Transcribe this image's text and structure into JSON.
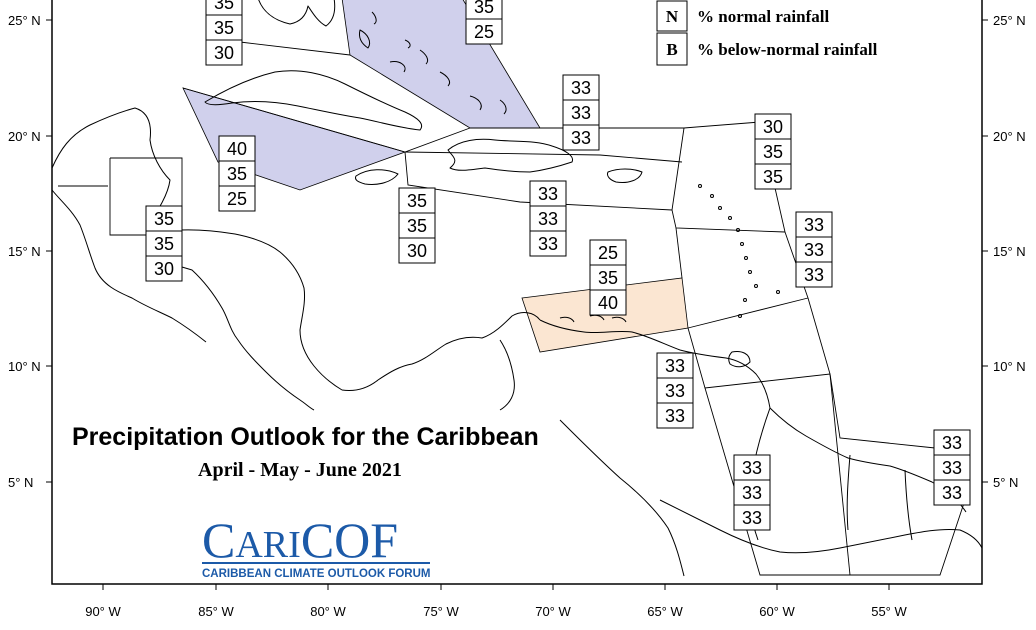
{
  "title": "Precipitation Outlook for the Caribbean",
  "subtitle": "April - May - June 2021",
  "legend": [
    {
      "key": "N",
      "label": "% normal rainfall"
    },
    {
      "key": "B",
      "label": "% below-normal rainfall"
    }
  ],
  "logo": {
    "text_cari": "CARI",
    "text_cof": "COF",
    "tagline": "CARIBBEAN CLIMATE OUTLOOK FORUM"
  },
  "lat_labels": [
    "25° N",
    "20° N",
    "15° N",
    "10° N",
    "5° N"
  ],
  "lon_labels": [
    "90° W",
    "85° W",
    "80° W",
    "75° W",
    "70° W",
    "65° W",
    "60° W",
    "55° W"
  ],
  "colors": {
    "above_normal_fill": "#d0d0ec",
    "below_normal_fill": "#fbe6d2",
    "land_line": "#000000"
  },
  "forecasts": [
    {
      "id": "bahamas-north-west",
      "values": [
        "35",
        "35",
        "30"
      ]
    },
    {
      "id": "bahamas-east",
      "values": [
        "35",
        "25"
      ]
    },
    {
      "id": "cayman",
      "values": [
        "40",
        "35",
        "25"
      ]
    },
    {
      "id": "belize",
      "values": [
        "35",
        "35",
        "30"
      ]
    },
    {
      "id": "jamaica",
      "values": [
        "35",
        "35",
        "30"
      ]
    },
    {
      "id": "hispaniola-north",
      "values": [
        "33",
        "33",
        "33"
      ]
    },
    {
      "id": "hispaniola-south",
      "values": [
        "33",
        "33",
        "33"
      ]
    },
    {
      "id": "leeward-north",
      "values": [
        "30",
        "35",
        "35"
      ]
    },
    {
      "id": "windward",
      "values": [
        "33",
        "33",
        "33"
      ]
    },
    {
      "id": "abc-islands",
      "values": [
        "25",
        "35",
        "40"
      ]
    },
    {
      "id": "trinidad",
      "values": [
        "33",
        "33",
        "33"
      ]
    },
    {
      "id": "guyana",
      "values": [
        "33",
        "33",
        "33"
      ]
    },
    {
      "id": "suriname-guiana",
      "values": [
        "33",
        "33",
        "33"
      ]
    }
  ]
}
